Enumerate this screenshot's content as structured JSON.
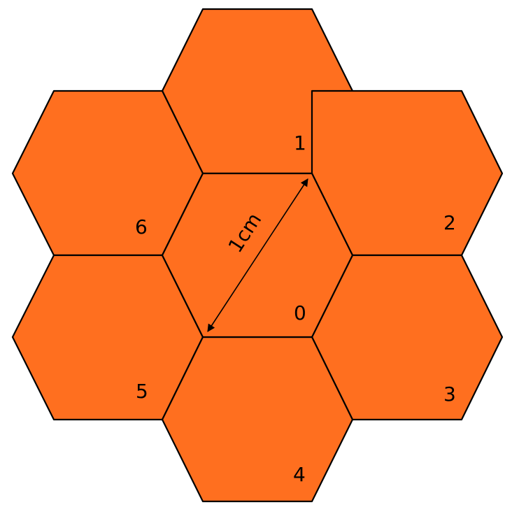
{
  "diagram": {
    "fill_color": "#FF6F1F",
    "stroke_color": "#000000",
    "cells": [
      {
        "id": "0",
        "label": "0",
        "position": "center"
      },
      {
        "id": "1",
        "label": "1",
        "position": "top"
      },
      {
        "id": "2",
        "label": "2",
        "position": "upper-right"
      },
      {
        "id": "3",
        "label": "3",
        "position": "lower-right"
      },
      {
        "id": "4",
        "label": "4",
        "position": "bottom"
      },
      {
        "id": "5",
        "label": "5",
        "position": "lower-left"
      },
      {
        "id": "6",
        "label": "6",
        "position": "upper-left"
      }
    ],
    "measurement": {
      "label": "1cm"
    }
  }
}
